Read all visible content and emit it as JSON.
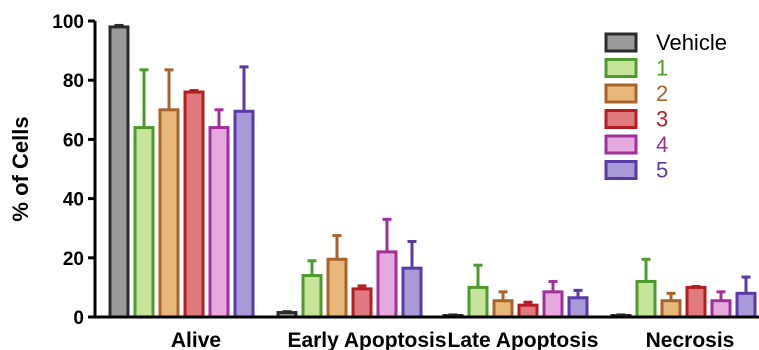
{
  "chart_data": {
    "type": "bar",
    "ylabel": "% of Cells",
    "xlabel": "",
    "ylim": [
      0,
      100
    ],
    "yticks": [
      0,
      20,
      40,
      60,
      80,
      100
    ],
    "categories": [
      "Alive",
      "Early Apoptosis",
      "Late Apoptosis",
      "Necrosis"
    ],
    "legend_position": "top-right",
    "series": [
      {
        "name": "Vehicle",
        "fill": "#9a9a9a",
        "stroke": "#2b2b2b",
        "values": [
          98,
          1.5,
          0.5,
          0.5
        ],
        "errors": [
          0.5,
          0.3,
          0.2,
          0.2
        ]
      },
      {
        "name": "1",
        "fill": "#c6e59a",
        "stroke": "#4f9a2e",
        "values": [
          64,
          14,
          10,
          12
        ],
        "errors": [
          19.5,
          5,
          7.5,
          7.5
        ]
      },
      {
        "name": "2",
        "fill": "#e8b87a",
        "stroke": "#a8632a",
        "values": [
          70,
          19.5,
          5.5,
          5.5
        ],
        "errors": [
          13.5,
          8,
          3,
          2.5
        ]
      },
      {
        "name": "3",
        "fill": "#e07a7e",
        "stroke": "#b31e23",
        "values": [
          76,
          9.5,
          4,
          10
        ],
        "errors": [
          0.5,
          1,
          1,
          0.3
        ]
      },
      {
        "name": "4",
        "fill": "#e6aade",
        "stroke": "#a2309b",
        "values": [
          64,
          22,
          8.5,
          5.5
        ],
        "errors": [
          6,
          11,
          3.5,
          3
        ]
      },
      {
        "name": "5",
        "fill": "#a89ad6",
        "stroke": "#5a3aa5",
        "values": [
          69.5,
          16.5,
          6.5,
          8
        ],
        "errors": [
          15,
          9,
          2.5,
          5.5
        ]
      }
    ]
  }
}
